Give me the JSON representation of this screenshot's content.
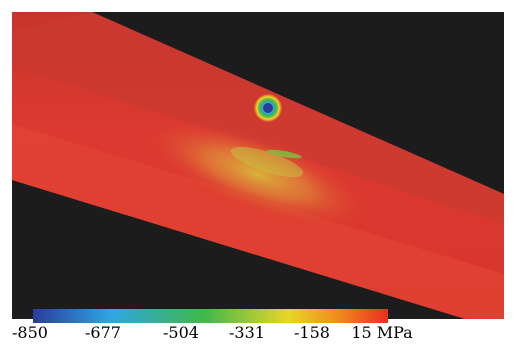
{
  "colorbar": {
    "unit": "MPa",
    "ticks": [
      "-850",
      "-677",
      "-504",
      "-331",
      "-158",
      "15"
    ],
    "colors": [
      "#2a3c9c",
      "#2fa6e0",
      "#3fb84a",
      "#e8d62a",
      "#f08a1e",
      "#e8301e"
    ]
  },
  "scene": {
    "background_color": "#1c1c1c",
    "band_color": "#dc3a30",
    "band_highlight_color": "#e04a38",
    "hotspot_colors": [
      "#2a3c9c",
      "#2fa6e0",
      "#3fb84a",
      "#e8d62a"
    ]
  }
}
